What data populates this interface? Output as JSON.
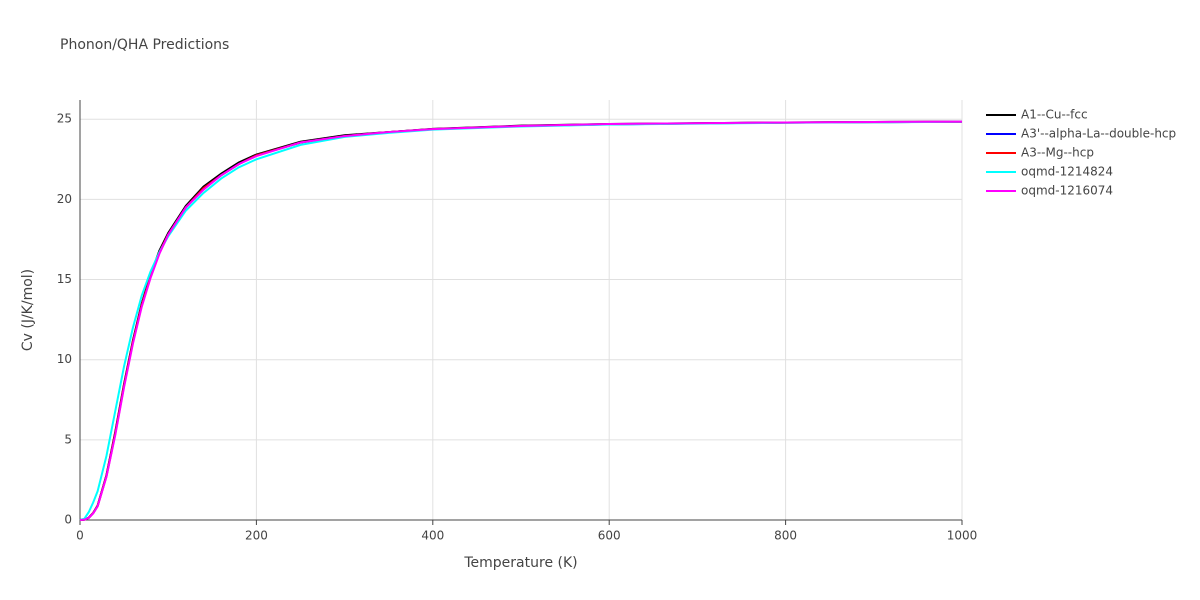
{
  "chart_data": {
    "type": "line",
    "title": "Phonon/QHA Predictions",
    "x_label": "Temperature (K)",
    "y_label": "Cv (J/K/mol)",
    "x": [
      0,
      5,
      10,
      15,
      20,
      30,
      40,
      50,
      60,
      70,
      80,
      90,
      100,
      120,
      140,
      160,
      180,
      200,
      250,
      300,
      350,
      400,
      500,
      600,
      700,
      800,
      900,
      1000
    ],
    "series": [
      {
        "name": "A1--Cu--fcc",
        "color": "#000000",
        "values": [
          0,
          0.02,
          0.15,
          0.45,
          0.9,
          2.8,
          5.5,
          8.5,
          11.2,
          13.5,
          15.3,
          16.8,
          17.9,
          19.6,
          20.8,
          21.6,
          22.3,
          22.8,
          23.6,
          24.0,
          24.2,
          24.4,
          24.6,
          24.7,
          24.75,
          24.8,
          24.83,
          24.85
        ]
      },
      {
        "name": "A3'--alpha-La--double-hcp",
        "color": "#0000ff",
        "values": [
          0,
          0.02,
          0.14,
          0.43,
          0.88,
          2.75,
          5.4,
          8.4,
          11.1,
          13.4,
          15.2,
          16.7,
          17.8,
          19.5,
          20.7,
          21.5,
          22.2,
          22.75,
          23.55,
          23.95,
          24.2,
          24.38,
          24.58,
          24.68,
          24.74,
          24.79,
          24.82,
          24.84
        ]
      },
      {
        "name": "A3--Mg--hcp",
        "color": "#ff0000",
        "values": [
          0,
          0.02,
          0.14,
          0.43,
          0.87,
          2.74,
          5.4,
          8.4,
          11.1,
          13.4,
          15.2,
          16.7,
          17.8,
          19.5,
          20.7,
          21.5,
          22.2,
          22.75,
          23.55,
          23.95,
          24.2,
          24.38,
          24.58,
          24.69,
          24.74,
          24.79,
          24.82,
          24.84
        ]
      },
      {
        "name": "oqmd-1214824",
        "color": "#00ffff",
        "values": [
          0,
          0.08,
          0.5,
          1.1,
          1.8,
          4.0,
          6.8,
          9.6,
          12.0,
          14.0,
          15.5,
          16.7,
          17.7,
          19.3,
          20.4,
          21.3,
          22.0,
          22.5,
          23.4,
          23.9,
          24.15,
          24.35,
          24.55,
          24.67,
          24.73,
          24.78,
          24.81,
          24.84
        ]
      },
      {
        "name": "oqmd-1216074",
        "color": "#ff00ff",
        "values": [
          0,
          0.02,
          0.14,
          0.42,
          0.85,
          2.7,
          5.3,
          8.3,
          11.0,
          13.3,
          15.1,
          16.6,
          17.8,
          19.5,
          20.6,
          21.5,
          22.2,
          22.7,
          23.55,
          23.95,
          24.2,
          24.38,
          24.58,
          24.7,
          24.75,
          24.8,
          24.83,
          24.85
        ]
      }
    ],
    "xlim": [
      0,
      1000
    ],
    "xticks": [
      0,
      200,
      400,
      600,
      800,
      1000
    ],
    "ylim": [
      0,
      26.2
    ],
    "yticks": [
      0,
      5,
      10,
      15,
      20,
      25
    ],
    "grid": true
  }
}
